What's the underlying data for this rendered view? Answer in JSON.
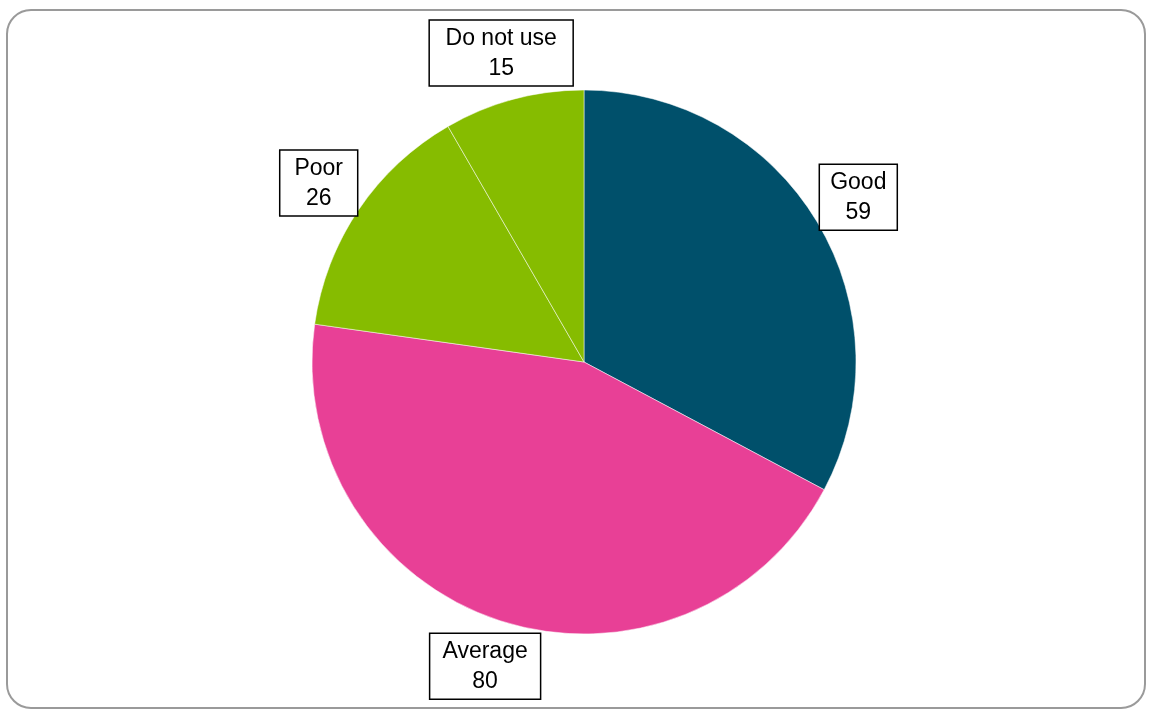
{
  "chart_data": {
    "type": "pie",
    "categories": [
      "Good",
      "Average",
      "Poor",
      "Do not use"
    ],
    "values": [
      59,
      80,
      26,
      15
    ],
    "colors": [
      "#00506b",
      "#e84096",
      "#86bc00",
      "#86bc00"
    ],
    "data_labels": true
  }
}
